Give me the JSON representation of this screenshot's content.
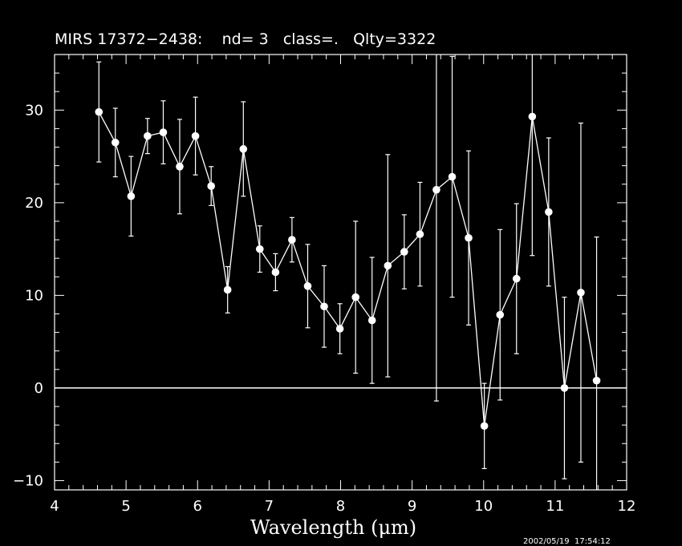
{
  "chart_data": {
    "type": "scatter",
    "title": "MIRS 17372−2438:    nd= 3   class=.   Qlty=3322",
    "xlabel": "Wavelength (μm)",
    "ylabel": "",
    "xlim": [
      4,
      12
    ],
    "ylim": [
      -11,
      36
    ],
    "xticks": [
      4,
      5,
      6,
      7,
      8,
      9,
      10,
      11,
      12
    ],
    "yticks": [
      -10,
      0,
      10,
      20,
      30
    ],
    "zero_line": true,
    "series": [
      {
        "x": [
          4.62,
          4.85,
          5.07,
          5.3,
          5.52,
          5.75,
          5.97,
          6.19,
          6.42,
          6.64,
          6.87,
          7.09,
          7.32,
          7.54,
          7.77,
          7.99,
          8.21,
          8.44,
          8.66,
          8.89,
          9.11,
          9.34,
          9.56,
          9.79,
          10.01,
          10.23,
          10.46,
          10.68,
          10.91,
          11.13,
          11.36,
          11.58
        ],
        "y": [
          29.8,
          26.5,
          20.7,
          27.2,
          27.6,
          23.9,
          27.2,
          21.8,
          10.6,
          25.8,
          15.0,
          12.5,
          16.0,
          11.0,
          8.8,
          6.4,
          9.8,
          7.3,
          13.2,
          14.7,
          16.6,
          21.4,
          22.8,
          16.2,
          -4.1,
          7.9,
          11.8,
          29.3,
          19.0,
          0.0,
          10.3,
          0.8
        ],
        "err": [
          5.4,
          3.7,
          4.3,
          1.9,
          3.4,
          5.1,
          4.2,
          2.1,
          2.5,
          5.1,
          2.5,
          2.0,
          2.4,
          4.5,
          4.4,
          2.7,
          8.2,
          6.8,
          12.0,
          4.0,
          5.6,
          22.8,
          13.0,
          9.4,
          4.6,
          9.2,
          8.1,
          15.0,
          8.0,
          9.8,
          18.3,
          15.5
        ]
      }
    ]
  },
  "timestamp": "2002/05/19  17:54:12"
}
